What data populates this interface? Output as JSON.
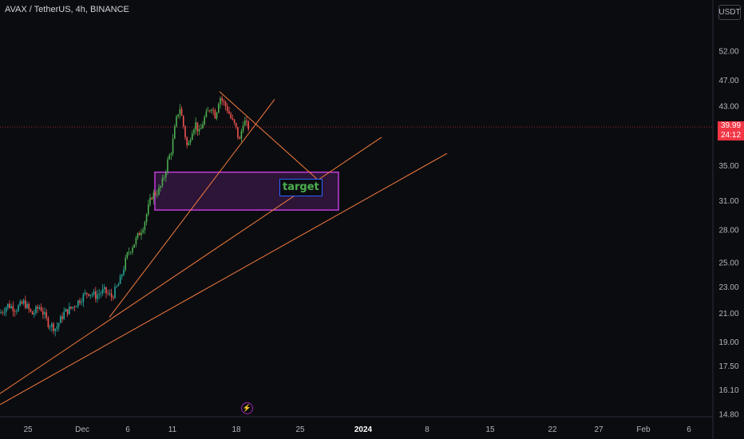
{
  "header": {
    "symbol_title": "AVAX / TetherUS, 4h, BINANCE",
    "currency": "USDT"
  },
  "last_price": {
    "value": "39.99",
    "countdown": "24:12",
    "color": "#f23645"
  },
  "annotation": {
    "target_label": "target"
  },
  "icons": {
    "event_marker": "lightning-icon"
  },
  "colors": {
    "background": "#0b0c10",
    "up": "#26a69a",
    "up_bright": "#4caf50",
    "down": "#ef5350",
    "trendline": "#f57c3d",
    "zone_border": "#c13bd8",
    "zone_fill": "#4a1d5a",
    "label_border": "#2962ff"
  },
  "chart_data": {
    "type": "candlestick",
    "title": "AVAX / TetherUS, 4h, BINANCE",
    "y_scale": "log",
    "y_ticks": [
      52.0,
      47.0,
      43.0,
      39.99,
      35.0,
      31.0,
      28.0,
      25.0,
      23.0,
      21.0,
      19.0,
      17.5,
      16.1,
      14.8
    ],
    "y_tick_labels": [
      "52.00",
      "47.00",
      "43.00",
      "35.00",
      "31.00",
      "28.00",
      "25.00",
      "23.00",
      "21.00",
      "19.00",
      "17.50",
      "16.10",
      "14.80"
    ],
    "x_tick_labels": [
      "25",
      "Dec",
      "6",
      "11",
      "18",
      "25",
      "2024",
      "8",
      "15",
      "22",
      "27",
      "Feb",
      "6"
    ],
    "price_path": [
      [
        0,
        21.0
      ],
      [
        10,
        21.6
      ],
      [
        20,
        21.3
      ],
      [
        30,
        21.8
      ],
      [
        40,
        20.9
      ],
      [
        50,
        21.5
      ],
      [
        60,
        20.3
      ],
      [
        70,
        19.9
      ],
      [
        80,
        21.0
      ],
      [
        90,
        21.4
      ],
      [
        100,
        22.0
      ],
      [
        110,
        22.6
      ],
      [
        120,
        22.3
      ],
      [
        130,
        22.7
      ],
      [
        140,
        22.2
      ],
      [
        150,
        23.4
      ],
      [
        160,
        25.8
      ],
      [
        170,
        27.0
      ],
      [
        180,
        28.5
      ],
      [
        190,
        31.5
      ],
      [
        200,
        32.2
      ],
      [
        205,
        33.5
      ],
      [
        210,
        35.5
      ],
      [
        215,
        37.0
      ],
      [
        220,
        40.5
      ],
      [
        225,
        43.0
      ],
      [
        230,
        40.0
      ],
      [
        235,
        37.0
      ],
      [
        240,
        39.5
      ],
      [
        245,
        40.5
      ],
      [
        250,
        39.0
      ],
      [
        255,
        41.0
      ],
      [
        260,
        42.0
      ],
      [
        265,
        43.0
      ],
      [
        270,
        41.5
      ],
      [
        275,
        44.5
      ],
      [
        280,
        43.5
      ],
      [
        285,
        42.5
      ],
      [
        290,
        41.0
      ],
      [
        295,
        40.0
      ],
      [
        300,
        38.0
      ],
      [
        305,
        41.0
      ],
      [
        310,
        40.0
      ]
    ],
    "support_zone": {
      "low": 30.0,
      "high": 34.2,
      "label": "target"
    },
    "trendlines": [
      {
        "from": [
          275,
          45.2
        ],
        "to": [
          402,
          33.0
        ]
      },
      {
        "from": [
          137,
          20.7
        ],
        "to": [
          344,
          44.0
        ]
      },
      {
        "from": [
          0,
          15.9
        ],
        "to": [
          478,
          38.6
        ]
      },
      {
        "from": [
          0,
          15.3
        ],
        "to": [
          560,
          36.5
        ]
      }
    ],
    "last_price_line": 39.99,
    "grid": false
  }
}
